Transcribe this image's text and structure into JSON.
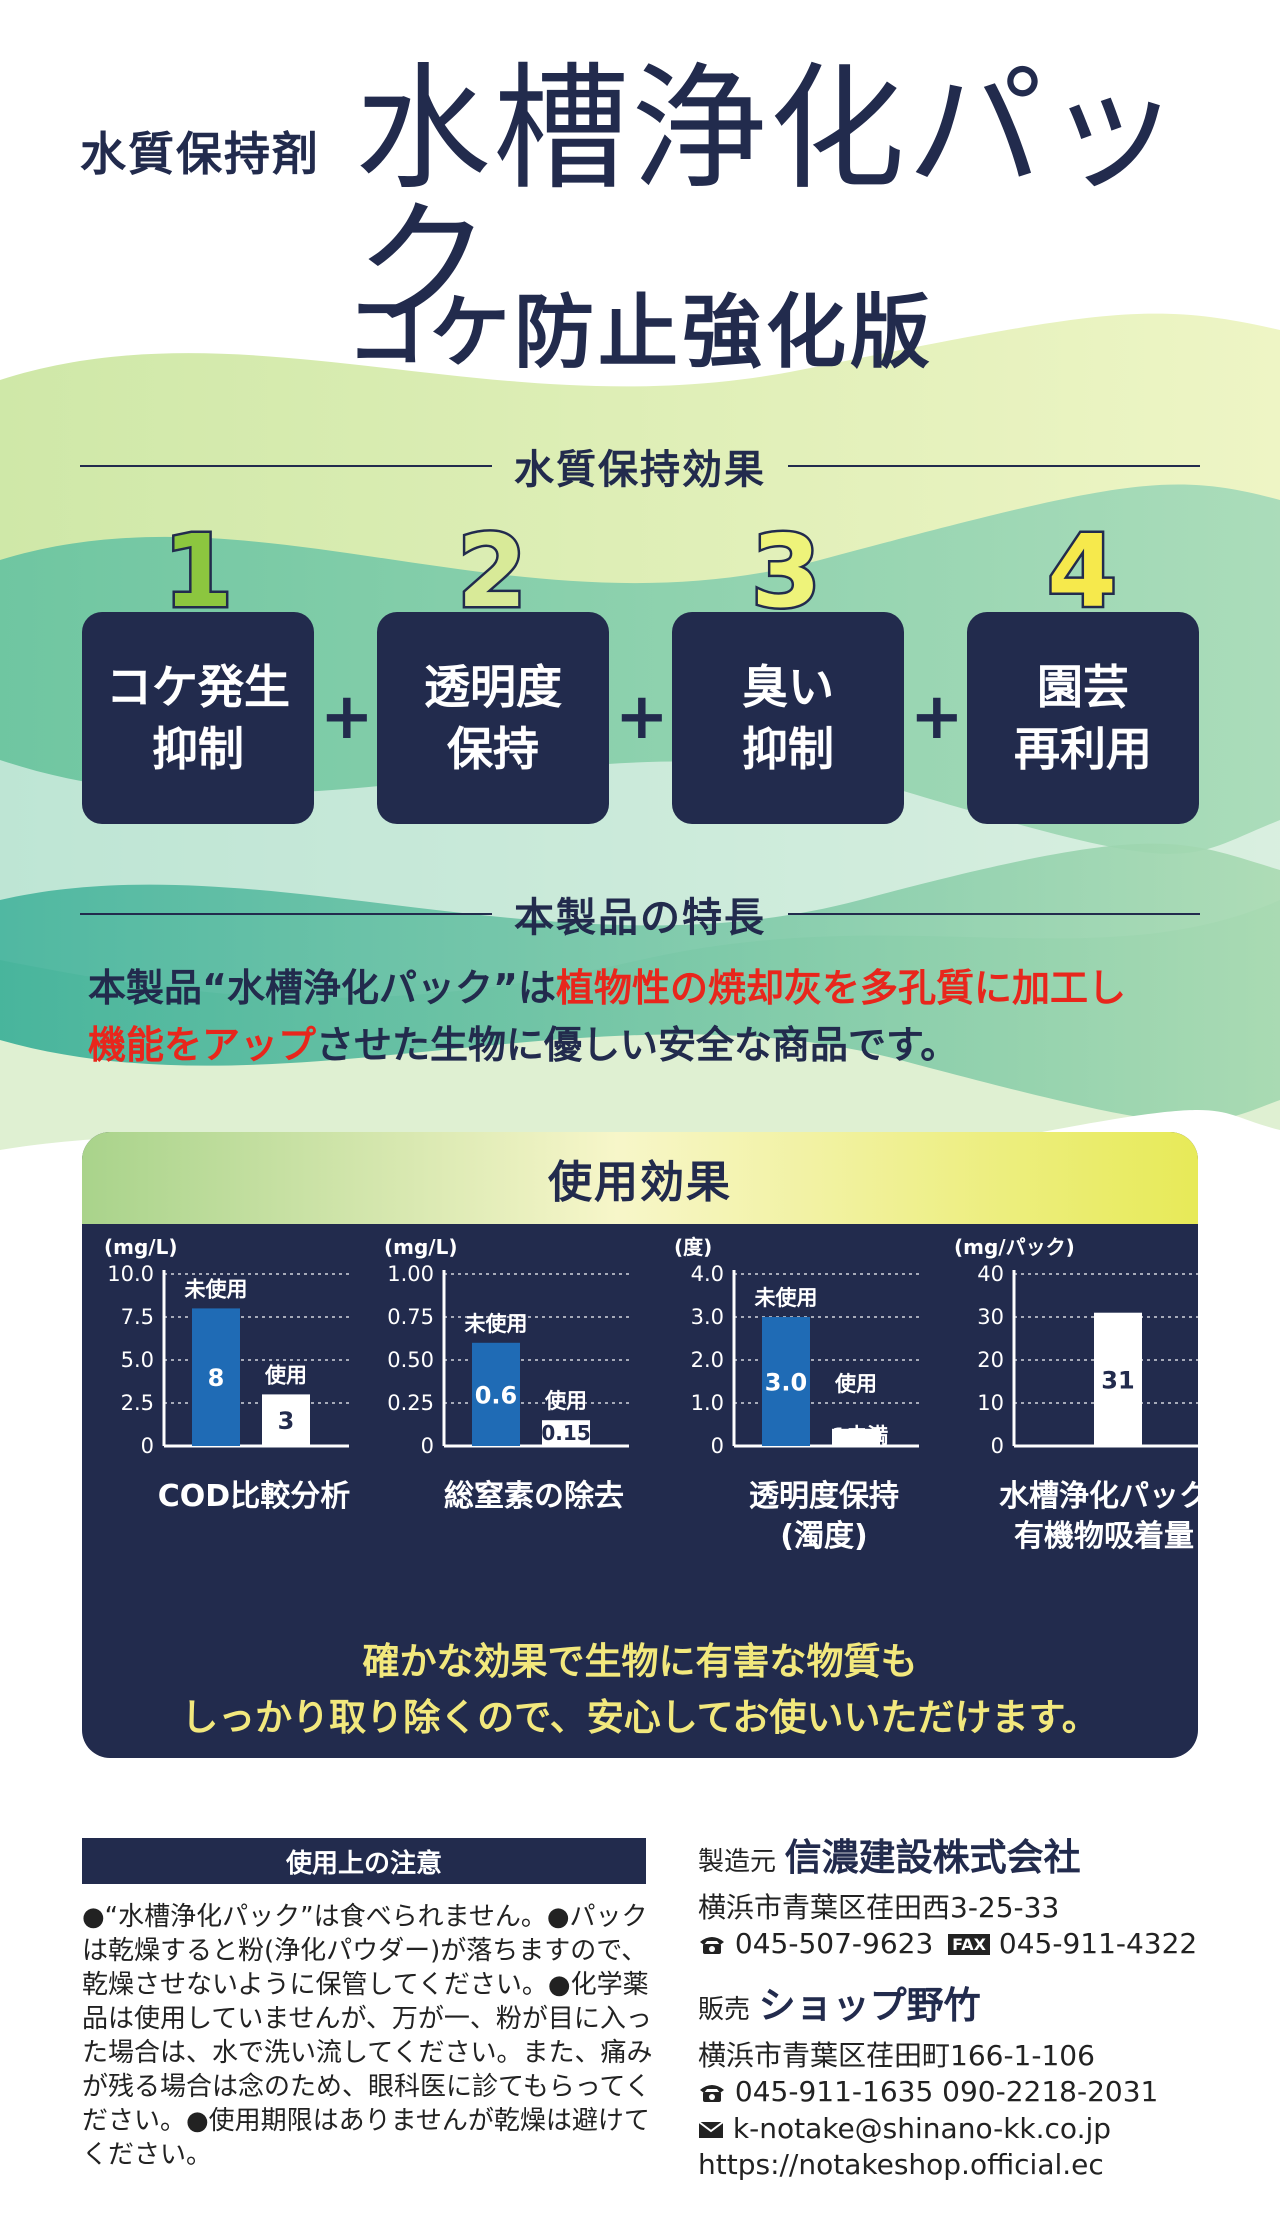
{
  "header": {
    "subtitle": "水質保持剤",
    "title": "水槽浄化パック",
    "edition": "コケ防止強化版"
  },
  "effects_section": {
    "heading": "水質保持効果",
    "items": [
      {
        "number": "1",
        "line1": "コケ発生",
        "line2": "抑制",
        "color": "#8cc63f"
      },
      {
        "number": "2",
        "line1": "透明度",
        "line2": "保持",
        "color": "#d8ea98"
      },
      {
        "number": "3",
        "line1": "臭い",
        "line2": "抑制",
        "color": "#eef37a"
      },
      {
        "number": "4",
        "line1": "園芸",
        "line2": "再利用",
        "color": "#f6e94c"
      }
    ],
    "plus": "+"
  },
  "features_section": {
    "heading": "本製品の特長",
    "p1": "本製品“水槽浄化パック”は",
    "p2_red": "植物性の焼却灰を多孔質に加工し",
    "p3_red": "機能をアップ",
    "p4": "させた生物に優しい安全な商品です。"
  },
  "usage": {
    "heading": "使用効果",
    "footer_line1": "確かな効果で生物に有害な物質も",
    "footer_line2": "しっかり取り除くので、安心してお使いいただけます。"
  },
  "chart_data": [
    {
      "type": "bar",
      "title": "COD比較分析",
      "unit": "(mg/L)",
      "yticks": [
        "10.0",
        "7.5",
        "5.0",
        "2.5",
        "0"
      ],
      "ylim": [
        0,
        10
      ],
      "categories": [
        "未使用",
        "使用"
      ],
      "values": [
        8,
        3
      ],
      "value_labels": [
        "8",
        "3"
      ],
      "colors": [
        "#1f6bb5",
        "#ffffff"
      ]
    },
    {
      "type": "bar",
      "title": "総窒素の除去",
      "unit": "(mg/L)",
      "yticks": [
        "1.00",
        "0.75",
        "0.50",
        "0.25",
        "0"
      ],
      "ylim": [
        0,
        1
      ],
      "categories": [
        "未使用",
        "使用"
      ],
      "values": [
        0.6,
        0.15
      ],
      "value_labels": [
        "0.6",
        "0.15"
      ],
      "colors": [
        "#1f6bb5",
        "#ffffff"
      ]
    },
    {
      "type": "bar",
      "title": "透明度保持",
      "title2": "(濁度)",
      "unit": "(度)",
      "yticks": [
        "4.0",
        "3.0",
        "2.0",
        "1.0",
        "0"
      ],
      "ylim": [
        0,
        4
      ],
      "categories": [
        "未使用",
        "使用"
      ],
      "category2": [
        "",
        "1未満"
      ],
      "values": [
        3.0,
        0.4
      ],
      "value_labels": [
        "3.0",
        ""
      ],
      "colors": [
        "#1f6bb5",
        "#ffffff"
      ]
    },
    {
      "type": "bar",
      "title": "水槽浄化パック",
      "title2": "有機物吸着量",
      "unit": "(mg/パック)",
      "yticks": [
        "40",
        "30",
        "20",
        "10",
        "0"
      ],
      "ylim": [
        0,
        40
      ],
      "categories": [
        ""
      ],
      "values": [
        31
      ],
      "value_labels": [
        "31"
      ],
      "colors": [
        "#ffffff"
      ]
    }
  ],
  "notes": {
    "heading": "使用上の注意",
    "body": "●“水槽浄化パック”は食べられません。●パックは乾燥すると粉(浄化パウダー)が落ちますので、乾燥させないように保管してください。●化学薬品は使用していませんが、万が一、粉が目に入った場合は、水で洗い流してください。また、痛みが残る場合は念のため、眼科医に診てもらってください。●使用期限はありませんが乾燥は避けてください。"
  },
  "manufacturer": {
    "role": "製造元",
    "name": "信濃建設株式会社",
    "address": "横浜市青葉区荏田西3-25-33",
    "tel": "045-507-9623",
    "fax_label": "FAX",
    "fax": "045-911-4322"
  },
  "seller": {
    "role": "販売",
    "name": "ショップ野竹",
    "address": "横浜市青葉区荏田町166-1-106",
    "tel": "045-911-1635 090-2218-2031",
    "email": "k-notake@shinano-kk.co.jp",
    "url": "https://notakeshop.official.ec"
  }
}
